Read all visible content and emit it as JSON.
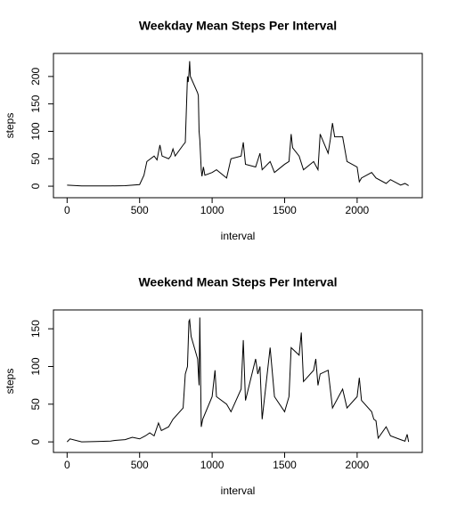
{
  "chart_data": [
    {
      "type": "line",
      "title": "Weekday Mean Steps Per Interval",
      "x_label": "interval",
      "y_label": "steps",
      "color": "#000000",
      "x": [
        0,
        100,
        200,
        300,
        400,
        500,
        530,
        550,
        600,
        620,
        640,
        655,
        700,
        715,
        730,
        745,
        800,
        815,
        830,
        835,
        840,
        845,
        850,
        900,
        905,
        910,
        915,
        925,
        930,
        940,
        950,
        1000,
        1030,
        1100,
        1130,
        1200,
        1215,
        1230,
        1300,
        1330,
        1345,
        1400,
        1430,
        1500,
        1530,
        1545,
        1555,
        1600,
        1630,
        1700,
        1730,
        1745,
        1800,
        1815,
        1830,
        1845,
        1900,
        1930,
        2000,
        2015,
        2030,
        2100,
        2130,
        2200,
        2230,
        2300,
        2330,
        2355
      ],
      "series": [
        {
          "name": "steps",
          "values": [
            2,
            0.5,
            0.5,
            0.5,
            1,
            3,
            20,
            45,
            55,
            48,
            75,
            55,
            50,
            55,
            68,
            55,
            75,
            80,
            200,
            190,
            205,
            228,
            200,
            170,
            165,
            100,
            85,
            30,
            18,
            35,
            20,
            25,
            30,
            15,
            50,
            55,
            80,
            40,
            35,
            60,
            30,
            45,
            25,
            40,
            45,
            95,
            70,
            55,
            30,
            45,
            30,
            95,
            60,
            85,
            115,
            90,
            90,
            45,
            35,
            8,
            15,
            25,
            15,
            5,
            12,
            2,
            5,
            1
          ]
        }
      ],
      "xlim": [
        -94.2,
        2449.2
      ],
      "xticks": [
        0,
        500,
        1000,
        1500,
        2000
      ],
      "ylim": [
        -21,
        242
      ],
      "yticks": [
        0,
        50,
        100,
        150,
        200
      ]
    },
    {
      "type": "line",
      "title": "Weekend Mean Steps Per Interval",
      "x_label": "interval",
      "y_label": "steps",
      "color": "#000000",
      "x": [
        0,
        20,
        100,
        200,
        300,
        330,
        400,
        450,
        500,
        540,
        570,
        600,
        630,
        650,
        700,
        730,
        800,
        815,
        830,
        840,
        845,
        855,
        900,
        910,
        915,
        925,
        935,
        1000,
        1020,
        1030,
        1100,
        1130,
        1200,
        1215,
        1230,
        1300,
        1315,
        1330,
        1345,
        1400,
        1430,
        1500,
        1530,
        1545,
        1600,
        1615,
        1630,
        1700,
        1715,
        1730,
        1745,
        1800,
        1830,
        1900,
        1930,
        2000,
        2015,
        2030,
        2100,
        2115,
        2130,
        2145,
        2200,
        2230,
        2300,
        2330,
        2345,
        2355
      ],
      "series": [
        {
          "name": "steps",
          "values": [
            0,
            4,
            0,
            0.5,
            1,
            2,
            3,
            6,
            4,
            8,
            12,
            8,
            25,
            15,
            20,
            30,
            45,
            90,
            100,
            160,
            162,
            140,
            110,
            75,
            165,
            20,
            30,
            60,
            95,
            60,
            50,
            40,
            70,
            135,
            55,
            110,
            90,
            100,
            30,
            125,
            60,
            40,
            60,
            125,
            115,
            145,
            80,
            95,
            110,
            75,
            90,
            95,
            45,
            70,
            45,
            60,
            85,
            55,
            40,
            30,
            28,
            5,
            20,
            8,
            3,
            1,
            10,
            0
          ]
        }
      ],
      "xlim": [
        -94.2,
        2449.2
      ],
      "xticks": [
        0,
        500,
        1000,
        1500,
        2000
      ],
      "ylim": [
        -14,
        175
      ],
      "yticks": [
        0,
        50,
        100,
        150
      ]
    }
  ]
}
